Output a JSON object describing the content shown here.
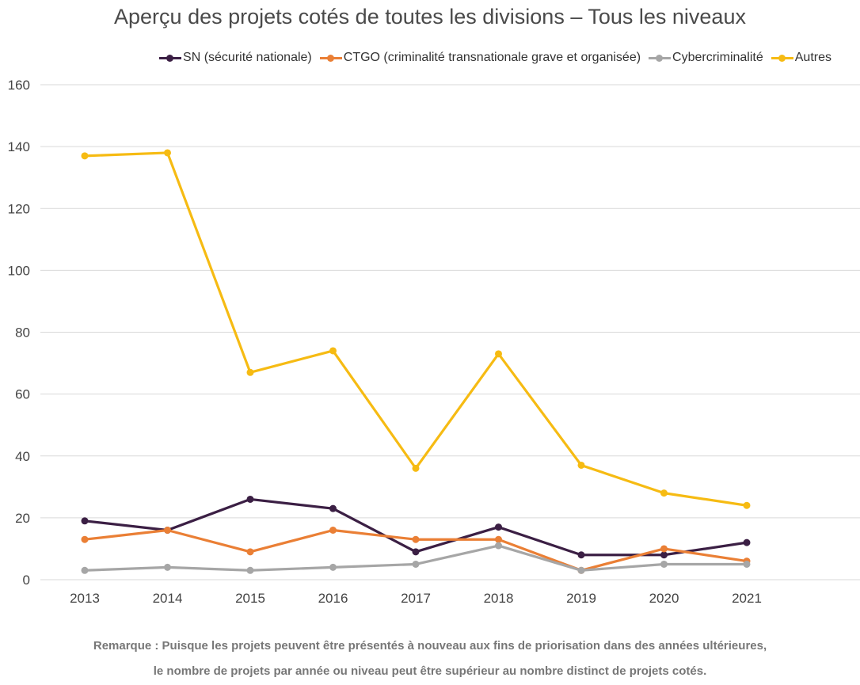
{
  "chart_data": {
    "type": "line",
    "title": "Aperçu des projets cotés de toutes les divisions – Tous les niveaux",
    "xlabel": "",
    "ylabel": "",
    "x": [
      "2013",
      "2014",
      "2015",
      "2016",
      "2017",
      "2018",
      "2019",
      "2020",
      "2021"
    ],
    "ylim": [
      0,
      160
    ],
    "yticks": [
      "0",
      "20",
      "40",
      "60",
      "80",
      "100",
      "120",
      "140",
      "160"
    ],
    "grid": true,
    "legend_position": "top-right",
    "series": [
      {
        "name": "SN (sécurité nationale)",
        "color": "#3b1f44",
        "values": [
          19,
          16,
          26,
          23,
          9,
          17,
          8,
          8,
          12
        ]
      },
      {
        "name": "CTGO (criminalité transnationale grave et organisée)",
        "color": "#ea7f35",
        "values": [
          13,
          16,
          9,
          16,
          13,
          13,
          3,
          10,
          6
        ]
      },
      {
        "name": "Cybercriminalité",
        "color": "#a6a6a6",
        "values": [
          3,
          4,
          3,
          4,
          5,
          11,
          3,
          5,
          5
        ]
      },
      {
        "name": "Autres",
        "color": "#f6bb13",
        "values": [
          137,
          138,
          67,
          74,
          36,
          73,
          37,
          28,
          24
        ]
      }
    ],
    "note": [
      "Remarque : Puisque les projets peuvent être présentés à nouveau aux fins de priorisation dans des années ultérieures,",
      "le nombre de projets par année ou niveau peut être supérieur au nombre distinct de projets cotés."
    ]
  }
}
